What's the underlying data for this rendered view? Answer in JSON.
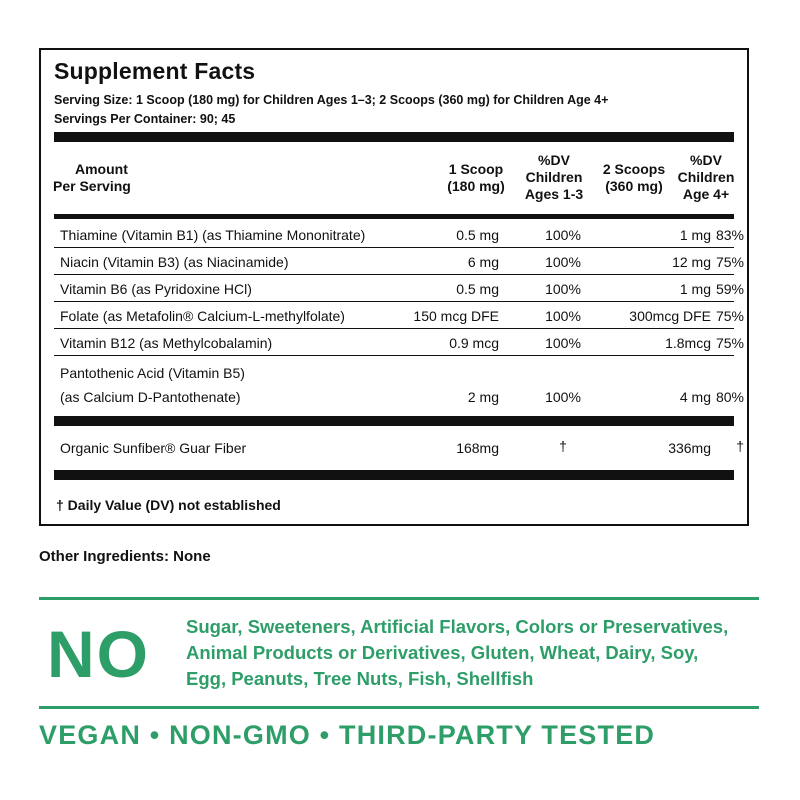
{
  "panel": {
    "title": "Supplement Facts",
    "serving_size": "Serving Size: 1 Scoop (180 mg) for Children Ages 1–3; 2 Scoops (360 mg) for Children Age 4+",
    "servings_per_container": "Servings Per Container: 90; 45",
    "headers": {
      "amount_line1": "Amount",
      "amount_line2": "Per Serving",
      "col1_line1": "1 Scoop",
      "col1_line2": "(180 mg)",
      "col2_line1": "%DV",
      "col2_line2": "Children",
      "col2_line3": "Ages 1-3",
      "col3_line1": "2 Scoops",
      "col3_line2": "(360 mg)",
      "col4_line1": "%DV",
      "col4_line2": "Children",
      "col4_line3": "Age 4+"
    },
    "rows": [
      {
        "nutrient": "Thiamine (Vitamin B1) (as Thiamine Mononitrate)",
        "amt1": "0.5 mg",
        "dv1": "100%",
        "amt2": "1 mg",
        "dv2": "83%"
      },
      {
        "nutrient": "Niacin (Vitamin B3) (as Niacinamide)",
        "amt1": "6 mg",
        "dv1": "100%",
        "amt2": "12 mg",
        "dv2": "75%"
      },
      {
        "nutrient": "Vitamin B6 (as Pyridoxine HCl)",
        "amt1": "0.5 mg",
        "dv1": "100%",
        "amt2": "1 mg",
        "dv2": "59%"
      },
      {
        "nutrient": "Folate (as Metafolin® Calcium-L-methylfolate)",
        "amt1": "150 mcg DFE",
        "dv1": "100%",
        "amt2": "300mcg DFE",
        "dv2": "75%"
      },
      {
        "nutrient": "Vitamin B12 (as Methylcobalamin)",
        "amt1": "0.9 mcg",
        "dv1": "100%",
        "amt2": "1.8mcg",
        "dv2": "75%"
      },
      {
        "nutrient_line1": "Pantothenic Acid (Vitamin B5)",
        "nutrient_line2": "(as Calcium D-Pantothenate)",
        "amt1": "2 mg",
        "dv1": "100%",
        "amt2": "4 mg",
        "dv2": "80%"
      }
    ],
    "fiber": {
      "nutrient": "Organic Sunfiber® Guar Fiber",
      "amt1": "168mg",
      "dv1": "†",
      "amt2": "336mg",
      "dv2": "†"
    },
    "footnote": "† Daily Value (DV) not established"
  },
  "other_ingredients": "Other Ingredients: None",
  "no_section": {
    "big": "NO",
    "line1": "Sugar, Sweeteners, Artificial Flavors, Colors or Preservatives,",
    "line2": "Animal Products or Derivatives, Gluten, Wheat, Dairy, Soy,",
    "line3": "Egg, Peanuts, Tree Nuts, Fish, Shellfish"
  },
  "tagline": "VEGAN • NON-GMO • THIRD-PARTY TESTED",
  "colors": {
    "accent_green": "#2e9e69",
    "text": "#111111"
  }
}
